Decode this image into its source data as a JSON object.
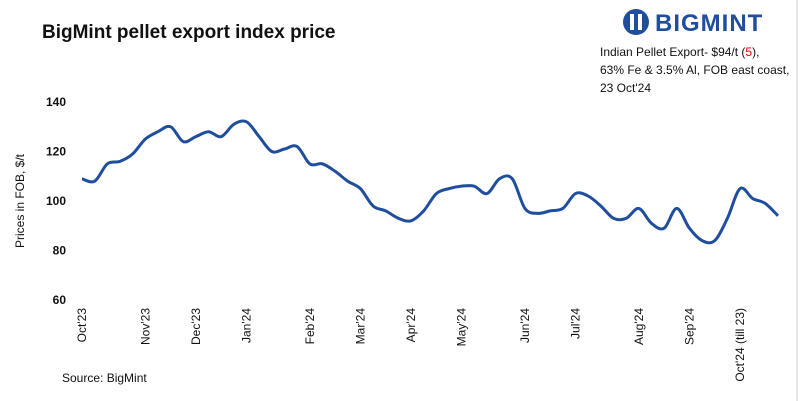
{
  "chart_data": {
    "type": "line",
    "title": "BigMint pellet export index price",
    "logo": "BIGMINT",
    "annotation": {
      "line1_start": "Indian Pellet Export- $94/t (",
      "line1_change": "5",
      "line1_end": "),",
      "line2": "63% Fe & 3.5% Al, FOB east coast,",
      "line3": "23 Oct'24"
    },
    "y_label": "Prices in FOB, $/t",
    "source": "Source: BigMint",
    "categories": [
      "Oct'23",
      null,
      null,
      null,
      null,
      "Nov'23",
      null,
      null,
      null,
      "Dec'23",
      null,
      null,
      null,
      "Jan'24",
      null,
      null,
      null,
      null,
      "Feb'24",
      null,
      null,
      null,
      "Mar'24",
      null,
      null,
      null,
      "Apr'24",
      null,
      null,
      null,
      "May'24",
      null,
      null,
      null,
      null,
      "Jun'24",
      null,
      null,
      null,
      "Jul'24",
      null,
      null,
      null,
      null,
      "Aug'24",
      null,
      null,
      null,
      "Sep'24",
      null,
      null,
      null,
      "Oct'24 (till 23)",
      null,
      null,
      null
    ],
    "series": [
      {
        "name": "Indian Pellet Export",
        "color": "#1f4e9c",
        "values": [
          109,
          108,
          115,
          116,
          119,
          125,
          128,
          130,
          124,
          126,
          128,
          126,
          131,
          132,
          126,
          120,
          121,
          122,
          115,
          115,
          112,
          108,
          105,
          98,
          96,
          93,
          92,
          96,
          103,
          105,
          106,
          106,
          103,
          109,
          109,
          97,
          95,
          96,
          97,
          103,
          102,
          98,
          93,
          93,
          97,
          91,
          89,
          97,
          89,
          84,
          84,
          93,
          105,
          101,
          99,
          94
        ]
      }
    ],
    "ylim": [
      60,
      140
    ],
    "yticks": [
      60,
      80,
      100,
      120,
      140
    ],
    "grid": false
  }
}
